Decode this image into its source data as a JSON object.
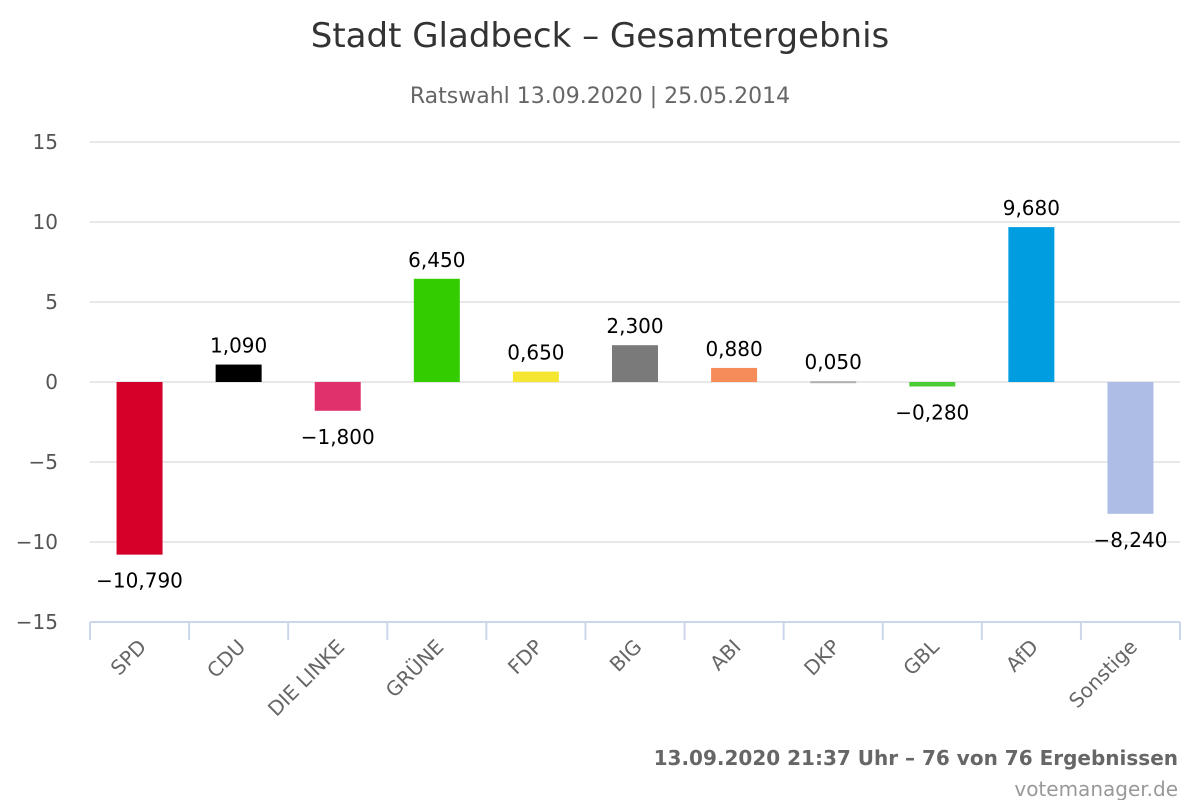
{
  "chart_data": {
    "type": "bar",
    "title": "Stadt Gladbeck – Gesamtergebnis",
    "subtitle": "Ratswahl 13.09.2020 | 25.05.2014",
    "categories": [
      "SPD",
      "CDU",
      "DIE LINKE",
      "GRÜNE",
      "FDP",
      "BIG",
      "ABI",
      "DKP",
      "GBL",
      "AfD",
      "Sonstige"
    ],
    "values": [
      -10.79,
      1.09,
      -1.8,
      6.45,
      0.65,
      2.3,
      0.88,
      0.05,
      -0.28,
      9.68,
      -8.24
    ],
    "data_labels": [
      "−10,790",
      "1,090",
      "−1,800",
      "6,450",
      "0,650",
      "2,300",
      "0,880",
      "0,050",
      "−0,280",
      "9,680",
      "−8,240"
    ],
    "colors": [
      "#d5002a",
      "#000000",
      "#e0316d",
      "#33cc00",
      "#f5e632",
      "#7a7a7a",
      "#f58c5a",
      "#b0b0b0",
      "#4ccc33",
      "#009ee0",
      "#aebde6"
    ],
    "ylim": [
      -15,
      15
    ],
    "yticks": [
      15,
      10,
      5,
      0,
      -5,
      -10,
      -15
    ],
    "ytick_labels": [
      "15",
      "10",
      "5",
      "0",
      "−5",
      "−10",
      "−15"
    ],
    "grid": true,
    "xlabel": "",
    "ylabel": ""
  },
  "footer": {
    "timestamp": "13.09.2020 21:37 Uhr – 76 von 76 Ergebnissen",
    "source": "votemanager.de"
  }
}
